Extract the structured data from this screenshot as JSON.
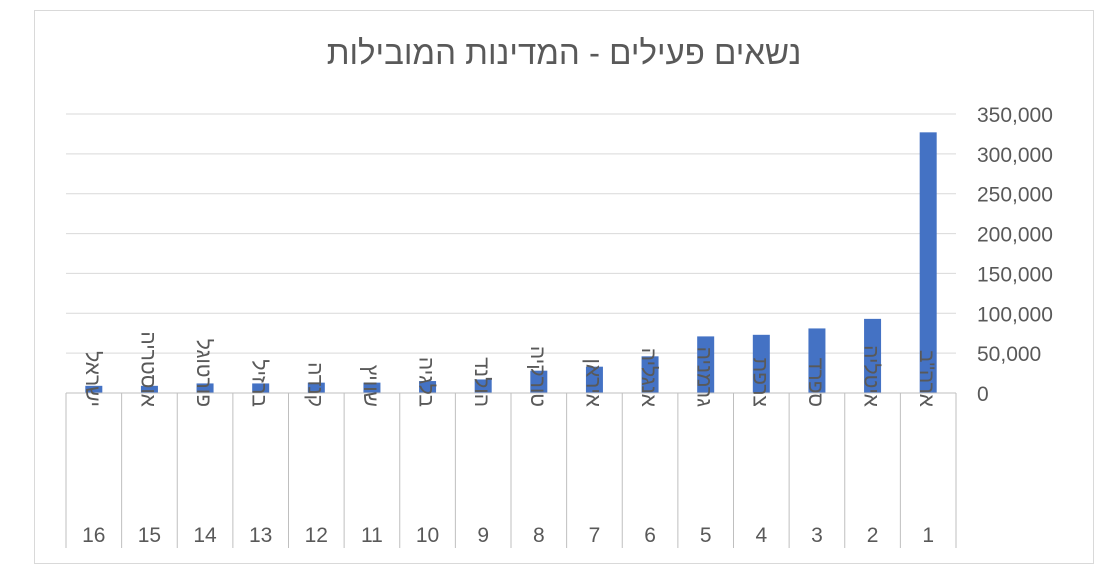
{
  "chart_data": {
    "type": "bar",
    "title": "נשאים פעילים - המדינות המובילות",
    "categories": [
      {
        "rank": "1",
        "name": "ארה\"ב"
      },
      {
        "rank": "2",
        "name": "איטליה"
      },
      {
        "rank": "3",
        "name": "ספרד"
      },
      {
        "rank": "4",
        "name": "צרפת"
      },
      {
        "rank": "5",
        "name": "גרמניה"
      },
      {
        "rank": "6",
        "name": "אנגליה"
      },
      {
        "rank": "7",
        "name": "איראן"
      },
      {
        "rank": "8",
        "name": "טורקיה"
      },
      {
        "rank": "9",
        "name": "הולנד"
      },
      {
        "rank": "10",
        "name": "בלגיה"
      },
      {
        "rank": "11",
        "name": "שוויץ"
      },
      {
        "rank": "12",
        "name": "קנדה"
      },
      {
        "rank": "13",
        "name": "ברזיל"
      },
      {
        "rank": "14",
        "name": "פורטוגל"
      },
      {
        "rank": "15",
        "name": "אוסטריה"
      },
      {
        "rank": "16",
        "name": "ישראל"
      }
    ],
    "values": [
      327000,
      93000,
      81000,
      73000,
      71000,
      46000,
      33000,
      28000,
      17000,
      15000,
      13000,
      13000,
      12000,
      12000,
      9000,
      9000
    ],
    "ylim": [
      0,
      350000
    ],
    "yticks": [
      "0",
      "50,000",
      "100,000",
      "150,000",
      "200,000",
      "250,000",
      "300,000",
      "350,000"
    ],
    "grid": true,
    "bar_color": "#4472c4",
    "axis_side": "right",
    "category_order": "right-to-left"
  }
}
